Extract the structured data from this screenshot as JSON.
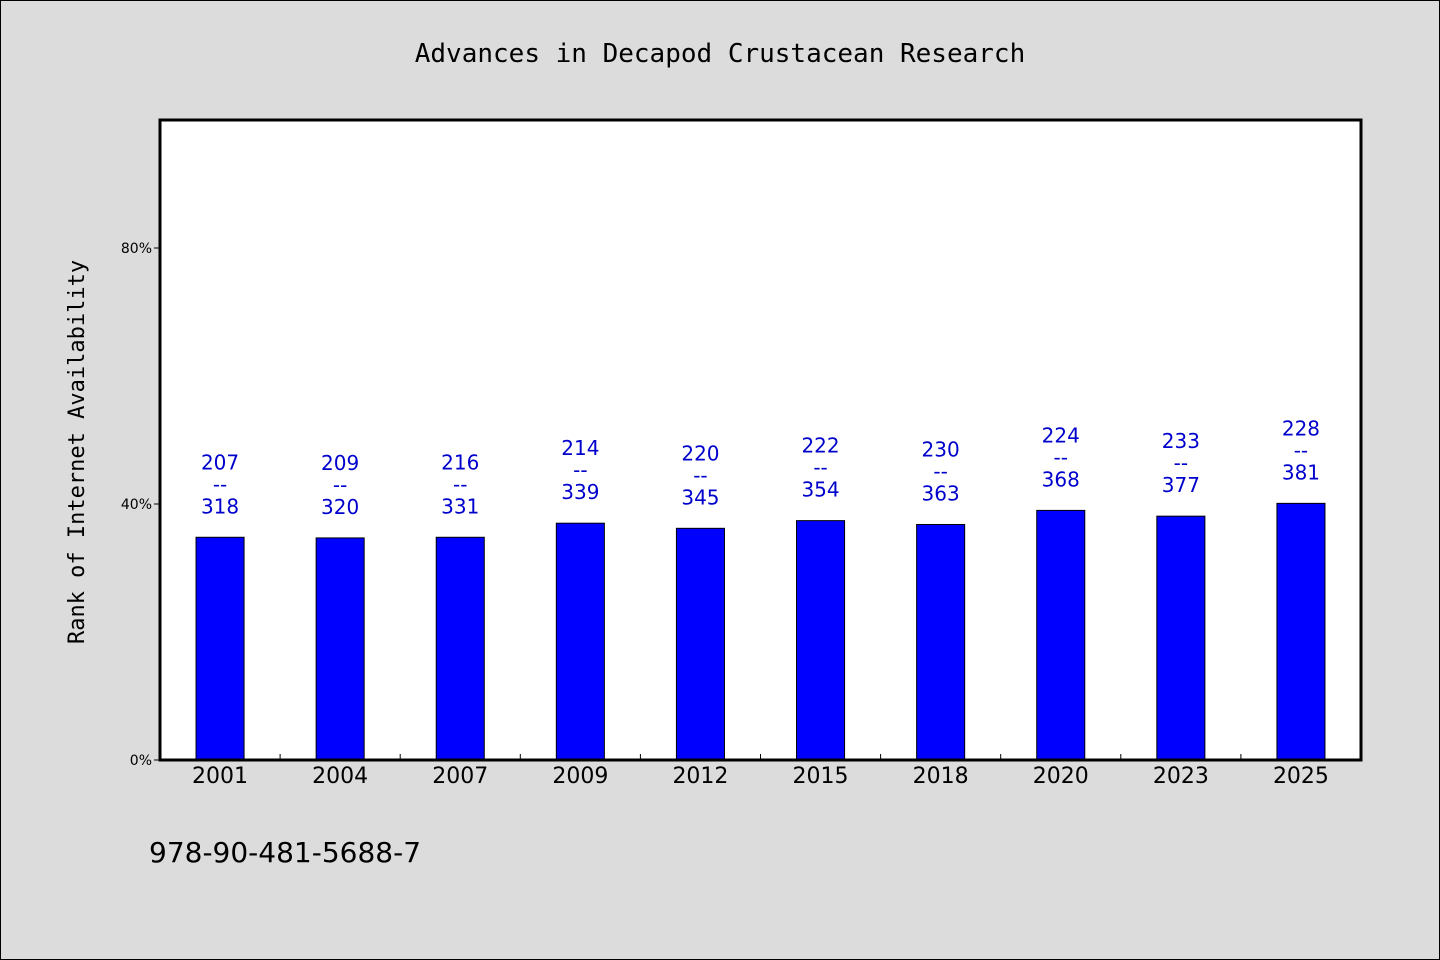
{
  "chart_data": {
    "type": "bar",
    "title": "Advances in Decapod Crustacean Research",
    "ylabel": "Rank of Internet Availability",
    "xlabel": "",
    "categories": [
      "2001",
      "2004",
      "2007",
      "2009",
      "2012",
      "2015",
      "2018",
      "2020",
      "2023",
      "2025"
    ],
    "values": [
      34.8,
      34.7,
      34.8,
      37.0,
      36.2,
      37.4,
      36.8,
      39.0,
      38.1,
      40.1
    ],
    "data_labels": [
      {
        "top": "207",
        "mid": "--",
        "bottom": "318"
      },
      {
        "top": "209",
        "mid": "--",
        "bottom": "320"
      },
      {
        "top": "216",
        "mid": "--",
        "bottom": "331"
      },
      {
        "top": "214",
        "mid": "--",
        "bottom": "339"
      },
      {
        "top": "220",
        "mid": "--",
        "bottom": "345"
      },
      {
        "top": "222",
        "mid": "--",
        "bottom": "354"
      },
      {
        "top": "230",
        "mid": "--",
        "bottom": "363"
      },
      {
        "top": "224",
        "mid": "--",
        "bottom": "368"
      },
      {
        "top": "233",
        "mid": "--",
        "bottom": "377"
      },
      {
        "top": "228",
        "mid": "--",
        "bottom": "381"
      }
    ],
    "ylim": [
      0,
      100
    ],
    "yticks": [
      0,
      40,
      80
    ],
    "ytick_labels": [
      "0%",
      "40%",
      "80%"
    ],
    "grid": false,
    "bar_color": "#0000ff",
    "label_color": "#0000cc"
  },
  "footer": {
    "isbn": "978-90-481-5688-7"
  }
}
